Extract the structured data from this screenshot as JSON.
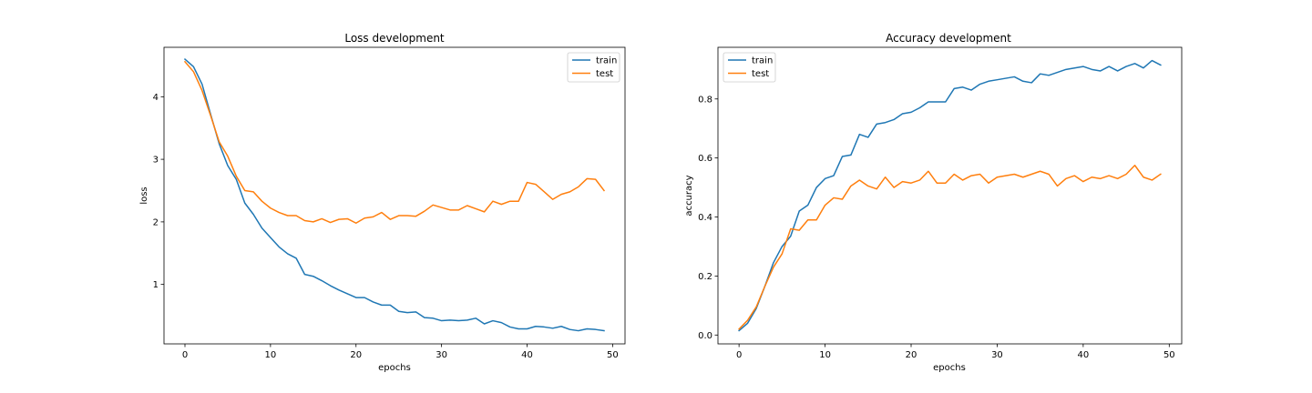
{
  "chart_data": [
    {
      "type": "line",
      "title": "Loss development",
      "xlabel": "epochs",
      "ylabel": "loss",
      "xlim": [
        -2.45,
        51.45
      ],
      "ylim": [
        0.05,
        4.79
      ],
      "xticks": [
        0,
        10,
        20,
        30,
        40,
        50
      ],
      "yticks": [
        1,
        2,
        3,
        4
      ],
      "legend_position": "upper right",
      "grid": false,
      "series": [
        {
          "name": "train",
          "color": "#1f77b4",
          "x": [
            0,
            1,
            2,
            3,
            4,
            5,
            6,
            7,
            8,
            9,
            10,
            11,
            12,
            13,
            14,
            15,
            16,
            17,
            18,
            19,
            20,
            21,
            22,
            23,
            24,
            25,
            26,
            27,
            28,
            29,
            30,
            31,
            32,
            33,
            34,
            35,
            36,
            37,
            38,
            39,
            40,
            41,
            42,
            43,
            44,
            45,
            46,
            47,
            48,
            49
          ],
          "values": [
            4.6,
            4.48,
            4.2,
            3.72,
            3.25,
            2.9,
            2.68,
            2.3,
            2.12,
            1.9,
            1.75,
            1.6,
            1.49,
            1.42,
            1.16,
            1.13,
            1.06,
            0.98,
            0.91,
            0.85,
            0.79,
            0.79,
            0.72,
            0.67,
            0.67,
            0.57,
            0.55,
            0.56,
            0.47,
            0.46,
            0.42,
            0.43,
            0.42,
            0.43,
            0.46,
            0.37,
            0.42,
            0.39,
            0.32,
            0.29,
            0.29,
            0.33,
            0.32,
            0.3,
            0.33,
            0.28,
            0.26,
            0.29,
            0.28,
            0.26
          ]
        },
        {
          "name": "test",
          "color": "#ff7f0e",
          "x": [
            0,
            1,
            2,
            3,
            4,
            5,
            6,
            7,
            8,
            9,
            10,
            11,
            12,
            13,
            14,
            15,
            16,
            17,
            18,
            19,
            20,
            21,
            22,
            23,
            24,
            25,
            26,
            27,
            28,
            29,
            30,
            31,
            32,
            33,
            34,
            35,
            36,
            37,
            38,
            39,
            40,
            41,
            42,
            43,
            44,
            45,
            46,
            47,
            48,
            49
          ],
          "values": [
            4.56,
            4.4,
            4.1,
            3.7,
            3.28,
            3.05,
            2.73,
            2.5,
            2.48,
            2.33,
            2.22,
            2.15,
            2.1,
            2.1,
            2.02,
            2.0,
            2.05,
            1.99,
            2.04,
            2.05,
            1.98,
            2.06,
            2.08,
            2.15,
            2.04,
            2.1,
            2.1,
            2.09,
            2.17,
            2.27,
            2.23,
            2.19,
            2.19,
            2.26,
            2.21,
            2.16,
            2.33,
            2.28,
            2.33,
            2.33,
            2.63,
            2.6,
            2.48,
            2.36,
            2.44,
            2.48,
            2.56,
            2.69,
            2.68,
            2.5
          ]
        }
      ]
    },
    {
      "type": "line",
      "title": "Accuracy development",
      "xlabel": "epochs",
      "ylabel": "accuracy",
      "xlim": [
        -2.45,
        51.45
      ],
      "ylim": [
        -0.03,
        0.975
      ],
      "xticks": [
        0,
        10,
        20,
        30,
        40,
        50
      ],
      "yticks": [
        0.0,
        0.2,
        0.4,
        0.6,
        0.8
      ],
      "legend_position": "upper left",
      "grid": false,
      "series": [
        {
          "name": "train",
          "color": "#1f77b4",
          "x": [
            0,
            1,
            2,
            3,
            4,
            5,
            6,
            7,
            8,
            9,
            10,
            11,
            12,
            13,
            14,
            15,
            16,
            17,
            18,
            19,
            20,
            21,
            22,
            23,
            24,
            25,
            26,
            27,
            28,
            29,
            30,
            31,
            32,
            33,
            34,
            35,
            36,
            37,
            38,
            39,
            40,
            41,
            42,
            43,
            44,
            45,
            46,
            47,
            48,
            49
          ],
          "values": [
            0.015,
            0.04,
            0.09,
            0.165,
            0.245,
            0.3,
            0.335,
            0.42,
            0.44,
            0.5,
            0.53,
            0.54,
            0.605,
            0.61,
            0.68,
            0.67,
            0.715,
            0.72,
            0.73,
            0.75,
            0.755,
            0.77,
            0.79,
            0.79,
            0.79,
            0.835,
            0.84,
            0.83,
            0.85,
            0.86,
            0.865,
            0.87,
            0.875,
            0.86,
            0.855,
            0.885,
            0.88,
            0.89,
            0.9,
            0.905,
            0.91,
            0.9,
            0.895,
            0.91,
            0.895,
            0.91,
            0.92,
            0.905,
            0.93,
            0.915
          ]
        },
        {
          "name": "test",
          "color": "#ff7f0e",
          "x": [
            0,
            1,
            2,
            3,
            4,
            5,
            6,
            7,
            8,
            9,
            10,
            11,
            12,
            13,
            14,
            15,
            16,
            17,
            18,
            19,
            20,
            21,
            22,
            23,
            24,
            25,
            26,
            27,
            28,
            29,
            30,
            31,
            32,
            33,
            34,
            35,
            36,
            37,
            38,
            39,
            40,
            41,
            42,
            43,
            44,
            45,
            46,
            47,
            48,
            49
          ],
          "values": [
            0.02,
            0.05,
            0.095,
            0.165,
            0.23,
            0.275,
            0.36,
            0.355,
            0.39,
            0.39,
            0.44,
            0.465,
            0.46,
            0.505,
            0.525,
            0.505,
            0.495,
            0.535,
            0.5,
            0.52,
            0.515,
            0.525,
            0.555,
            0.515,
            0.515,
            0.545,
            0.525,
            0.54,
            0.545,
            0.515,
            0.535,
            0.54,
            0.545,
            0.535,
            0.545,
            0.555,
            0.545,
            0.505,
            0.53,
            0.54,
            0.52,
            0.535,
            0.53,
            0.54,
            0.53,
            0.545,
            0.575,
            0.535,
            0.525,
            0.545
          ]
        }
      ]
    }
  ]
}
